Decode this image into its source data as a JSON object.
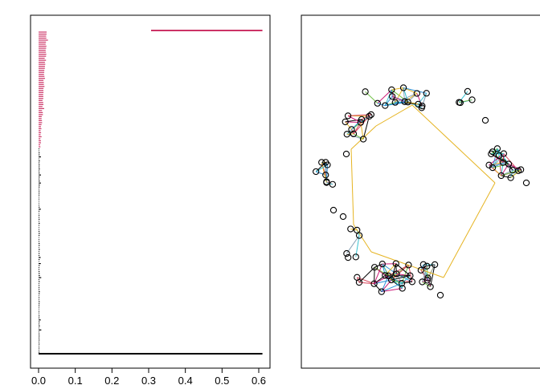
{
  "chart_data": [
    {
      "type": "bar",
      "orientation": "horizontal",
      "description_free": true,
      "xlim": [
        0,
        0.62
      ],
      "ticks": [
        {
          "value": 0.0,
          "label": "0.0"
        },
        {
          "value": 0.1,
          "label": "0.1"
        },
        {
          "value": 0.2,
          "label": "0.2"
        },
        {
          "value": 0.3,
          "label": "0.3"
        },
        {
          "value": 0.4,
          "label": "0.4"
        },
        {
          "value": 0.5,
          "label": "0.5"
        },
        {
          "value": 0.6,
          "label": "0.6"
        }
      ],
      "colors": {
        "upper": "#cc3366",
        "lower": "#000000"
      },
      "count": 160,
      "upper_count": 58,
      "top_value": 0.61,
      "baseline_value": 0.61,
      "grid": false
    },
    {
      "type": "scatter",
      "colors": {
        "node_fill_a": "#9fd9b8",
        "node_fill_b": "#9fc8e8",
        "node_fill_c": "#f3e08a",
        "node_fill_d": "#e6a3c4",
        "edge_a": "#e6b422",
        "edge_b": "#cc1a77",
        "edge_c": "#2b8fd6",
        "edge_d": "#36c2d1",
        "edge_e": "#6bbf3f",
        "edge_f": "#d6455a",
        "edge_g": "#8aa3b8",
        "edge_h": "#000000"
      }
    }
  ]
}
